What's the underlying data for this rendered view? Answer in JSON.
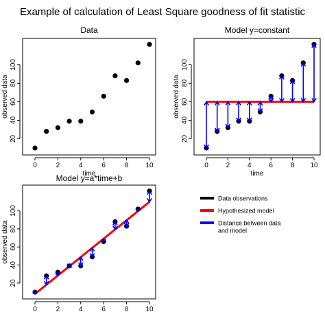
{
  "figure": {
    "title": "Example of calculation of Least Square goodness of fit statistic"
  },
  "colors": {
    "observation": "#000000",
    "model": "#ff0000",
    "distance": "#0000ff"
  },
  "legend": {
    "placement": "bottom-right",
    "items": [
      {
        "label": "Data observations",
        "color": "#000000"
      },
      {
        "label": "Hypothesized model",
        "color": "#ff0000"
      },
      {
        "label": "Distance between data",
        "label2": "and model",
        "color": "#0000ff"
      }
    ]
  },
  "chart_data": [
    {
      "type": "scatter",
      "title": "Data",
      "xlabel": "time",
      "ylabel": "observed data",
      "xlim": [
        0,
        10
      ],
      "ylim": [
        7,
        124
      ],
      "xticks": [
        0,
        2,
        4,
        6,
        8,
        10
      ],
      "yticks": [
        20,
        40,
        60,
        80,
        100
      ],
      "grid": false,
      "series": [
        {
          "x": [
            0,
            1,
            2,
            3,
            4,
            5,
            6,
            7,
            8,
            9,
            10
          ],
          "y": [
            10,
            28,
            32,
            39,
            39,
            49,
            66,
            88,
            83,
            102,
            122
          ]
        }
      ]
    },
    {
      "type": "scatter",
      "title": "Model y=constant",
      "xlabel": "time",
      "ylabel": "observed data",
      "xlim": [
        0,
        10
      ],
      "ylim": [
        7,
        124
      ],
      "xticks": [
        0,
        2,
        4,
        6,
        8,
        10
      ],
      "yticks": [
        20,
        40,
        60,
        80,
        100
      ],
      "grid": false,
      "series": [
        {
          "x": [
            0,
            1,
            2,
            3,
            4,
            5,
            6,
            7,
            8,
            9,
            10
          ],
          "y": [
            10,
            28,
            32,
            39,
            39,
            49,
            66,
            88,
            83,
            102,
            122
          ]
        }
      ],
      "model": {
        "type": "constant",
        "value": 60
      },
      "show_distances": true
    },
    {
      "type": "scatter",
      "title": "Model y=a*time+b",
      "xlabel": "time",
      "ylabel": "observed data",
      "xlim": [
        0,
        10
      ],
      "ylim": [
        7,
        124
      ],
      "xticks": [
        0,
        2,
        4,
        6,
        8,
        10
      ],
      "yticks": [
        20,
        40,
        60,
        80,
        100
      ],
      "grid": false,
      "series": [
        {
          "x": [
            0,
            1,
            2,
            3,
            4,
            5,
            6,
            7,
            8,
            9,
            10
          ],
          "y": [
            10,
            28,
            32,
            39,
            39,
            49,
            66,
            88,
            83,
            102,
            122
          ]
        }
      ],
      "model": {
        "type": "linear",
        "a": 10.2,
        "b": 8
      },
      "show_distances": true
    }
  ]
}
